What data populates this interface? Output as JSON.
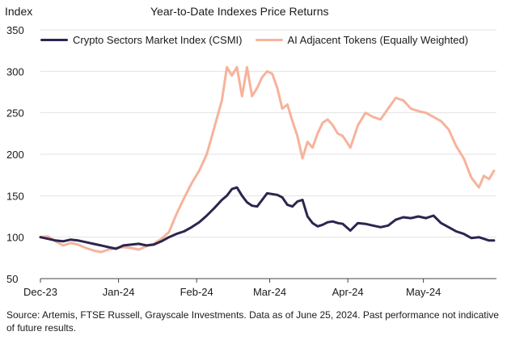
{
  "chart_data": {
    "type": "line",
    "title": "Year-to-Date Indexes Price Returns",
    "ylabel": "Index",
    "xlabel": "",
    "ylim": [
      50,
      350
    ],
    "yticks": [
      50,
      100,
      150,
      200,
      250,
      300,
      350
    ],
    "xlim": [
      0,
      181
    ],
    "xticks": [
      {
        "label": "Dec-23",
        "x": 0
      },
      {
        "label": "Jan-24",
        "x": 31
      },
      {
        "label": "Feb-24",
        "x": 62
      },
      {
        "label": "Mar-24",
        "x": 91
      },
      {
        "label": "Apr-24",
        "x": 122
      },
      {
        "label": "May-24",
        "x": 152
      }
    ],
    "grid": "horizontal",
    "legend_position": "top",
    "series": [
      {
        "name": "Crypto Sectors Market Index (CSMI)",
        "color": "#2b2550",
        "x": [
          0,
          3,
          6,
          9,
          12,
          15,
          18,
          21,
          24,
          27,
          30,
          33,
          36,
          39,
          42,
          45,
          48,
          51,
          54,
          57,
          60,
          63,
          66,
          69,
          72,
          74,
          76,
          78,
          80,
          82,
          84,
          86,
          88,
          90,
          92,
          94,
          96,
          98,
          100,
          102,
          104,
          106,
          108,
          110,
          112,
          114,
          116,
          118,
          120,
          123,
          126,
          129,
          132,
          135,
          138,
          141,
          144,
          147,
          150,
          153,
          156,
          159,
          162,
          165,
          168,
          171,
          174,
          176,
          178,
          180
        ],
        "values": [
          100,
          98,
          96,
          95,
          97,
          96,
          94,
          92,
          90,
          88,
          86,
          90,
          91,
          92,
          90,
          91,
          95,
          100,
          104,
          107,
          112,
          118,
          126,
          135,
          145,
          150,
          158,
          160,
          150,
          142,
          138,
          137,
          145,
          153,
          152,
          151,
          148,
          139,
          137,
          143,
          145,
          125,
          117,
          113,
          115,
          118,
          119,
          117,
          116,
          108,
          117,
          116,
          114,
          112,
          114,
          121,
          124,
          123,
          125,
          123,
          126,
          117,
          112,
          107,
          104,
          99,
          100,
          98,
          96,
          96
        ]
      },
      {
        "name": "AI Adjacent Tokens (Equally Weighted)",
        "color": "#f6b39b",
        "x": [
          0,
          3,
          6,
          9,
          12,
          15,
          18,
          21,
          24,
          27,
          30,
          33,
          36,
          39,
          42,
          45,
          48,
          51,
          54,
          57,
          60,
          63,
          66,
          69,
          72,
          74,
          76,
          78,
          80,
          82,
          84,
          86,
          88,
          90,
          92,
          94,
          96,
          98,
          100,
          102,
          104,
          106,
          108,
          110,
          112,
          114,
          116,
          118,
          120,
          123,
          126,
          129,
          132,
          135,
          138,
          141,
          144,
          147,
          150,
          153,
          156,
          159,
          162,
          165,
          168,
          171,
          174,
          176,
          178,
          180
        ],
        "values": [
          100,
          101,
          95,
          90,
          93,
          91,
          87,
          84,
          82,
          85,
          87,
          88,
          87,
          85,
          89,
          92,
          98,
          106,
          128,
          147,
          165,
          180,
          200,
          232,
          265,
          305,
          295,
          305,
          270,
          305,
          270,
          280,
          293,
          300,
          297,
          280,
          255,
          260,
          240,
          222,
          195,
          215,
          208,
          225,
          238,
          242,
          235,
          225,
          222,
          208,
          235,
          250,
          245,
          242,
          255,
          268,
          265,
          255,
          252,
          250,
          245,
          240,
          230,
          210,
          195,
          172,
          160,
          174,
          170,
          180
        ]
      }
    ]
  },
  "source_note": "Source: Artemis, FTSE Russell, Grayscale Investments. Data as of June 25, 2024. Past performance not indicative of future results."
}
